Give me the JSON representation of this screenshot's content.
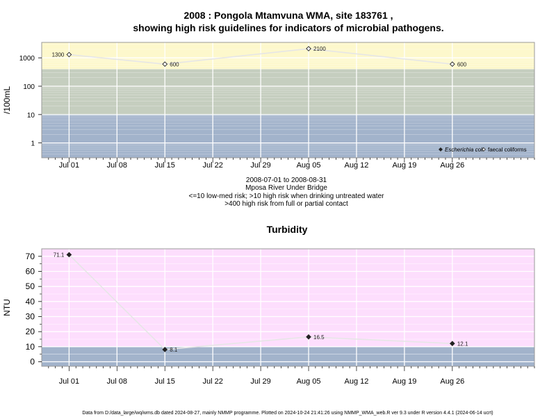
{
  "title_line1": "2008 : Pongola Mtamvuna WMA, site 183761 ,",
  "title_line2": "showing high risk guidelines for indicators of microbial pathogens.",
  "info_lines": [
    "2008-07-01 to 2008-08-31",
    "Mposa River Under Bridge",
    "<=10 low-med risk; >10 high risk when drinking untreated water",
    ">400 high risk from full or partial contact"
  ],
  "footer": "Data from D:/data_large/wq/wms.db dated 2024-08-27, mainly NMMP programme. Plotted on 2024-10-24 21:41:26 using NMMP_WMA_web.R ver 9.3 under R version 4.4.1 (2024-06-14 ucrt)",
  "colors": {
    "high_risk_band": "#fdf8cc",
    "mid_band": "#c5cebf",
    "low_band": "#a2b3cb",
    "turbidity_bg": "#fddefd",
    "turbidity_low": "#a2b3cb",
    "line": "#e6e6e6",
    "grid": "#ffffff"
  },
  "chart_data": [
    {
      "type": "line",
      "title": "",
      "ylabel": "/100mL",
      "yscale": "log",
      "ylim": [
        0.3,
        3500
      ],
      "x_axis": "date",
      "xlim": [
        "2008-06-27",
        "2008-09-07"
      ],
      "x_ticks": [
        "Jul 01",
        "Jul 08",
        "Jul 15",
        "Jul 22",
        "Jul 29",
        "Aug 05",
        "Aug 12",
        "Aug 19",
        "Aug 26"
      ],
      "y_ticks": [
        "1",
        "10",
        "100",
        "1000"
      ],
      "bands": [
        {
          "from": 0.3,
          "to": 10,
          "color": "#a2b3cb"
        },
        {
          "from": 10,
          "to": 400,
          "color": "#c5cebf"
        },
        {
          "from": 400,
          "to": 3500,
          "color": "#fdf8cc"
        }
      ],
      "series": [
        {
          "name": "faecal coliforms",
          "marker": "open-diamond",
          "points": [
            {
              "x": "2008-07-01",
              "y": 1300,
              "label": "1300"
            },
            {
              "x": "2008-07-15",
              "y": 600,
              "label": "600"
            },
            {
              "x": "2008-08-05",
              "y": 2100,
              "label": "2100"
            },
            {
              "x": "2008-08-26",
              "y": 600,
              "label": "600"
            }
          ]
        }
      ],
      "legend": {
        "position": "bottom-right",
        "entries": [
          {
            "label": "Escherichia coli",
            "marker": "filled-diamond",
            "italic": true
          },
          {
            "label": "faecal coliforms",
            "marker": "open-diamond",
            "italic": false
          }
        ]
      },
      "grid": true
    },
    {
      "type": "line",
      "title": "Turbidity",
      "ylabel": "NTU",
      "ylim": [
        -3,
        75
      ],
      "x_axis": "date",
      "xlim": [
        "2008-06-27",
        "2008-09-07"
      ],
      "x_ticks": [
        "Jul 01",
        "Jul 08",
        "Jul 15",
        "Jul 22",
        "Jul 29",
        "Aug 05",
        "Aug 12",
        "Aug 19",
        "Aug 26"
      ],
      "y_ticks": [
        "0",
        "10",
        "20",
        "30",
        "40",
        "50",
        "60",
        "70"
      ],
      "bands": [
        {
          "from": -3,
          "to": 10,
          "color": "#a2b3cb"
        },
        {
          "from": 10,
          "to": 75,
          "color": "#fddefd"
        }
      ],
      "series": [
        {
          "name": "",
          "marker": "filled-diamond",
          "points": [
            {
              "x": "2008-07-01",
              "y": 71.1,
              "label": "71.1"
            },
            {
              "x": "2008-07-15",
              "y": 8.1,
              "label": "8.1"
            },
            {
              "x": "2008-08-05",
              "y": 16.5,
              "label": "16.5"
            },
            {
              "x": "2008-08-26",
              "y": 12.1,
              "label": "12.1"
            }
          ]
        }
      ],
      "grid": true
    }
  ]
}
